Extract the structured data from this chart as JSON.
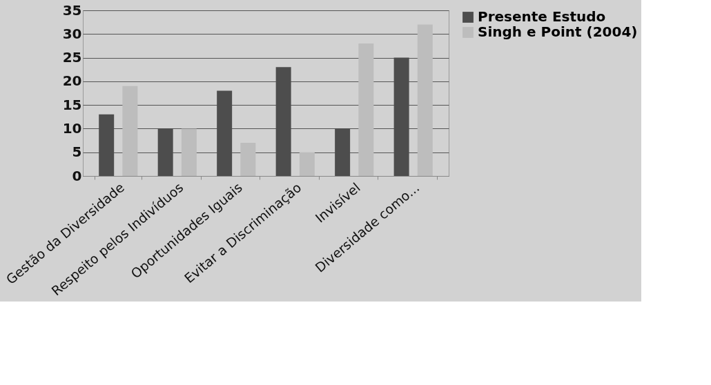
{
  "chart_data": {
    "type": "bar",
    "categories": [
      "Gestão da Diversidade",
      "Respeito pelos Indivíduos",
      "Oportunidades Iguais",
      "Evitar a Discriminação",
      "Invisível",
      "Diversidade como..."
    ],
    "series": [
      {
        "name": "Presente Estudo",
        "color": "#4d4d4d",
        "values": [
          13,
          10,
          18,
          23,
          10,
          25
        ]
      },
      {
        "name": "Singh e Point (2004)",
        "color": "#bdbdbd",
        "values": [
          19,
          10,
          7,
          5,
          28,
          32
        ]
      }
    ],
    "ylim": [
      0,
      35
    ],
    "yticks": [
      0,
      5,
      10,
      15,
      20,
      25,
      30,
      35
    ],
    "grid": "y",
    "legend": "right"
  }
}
